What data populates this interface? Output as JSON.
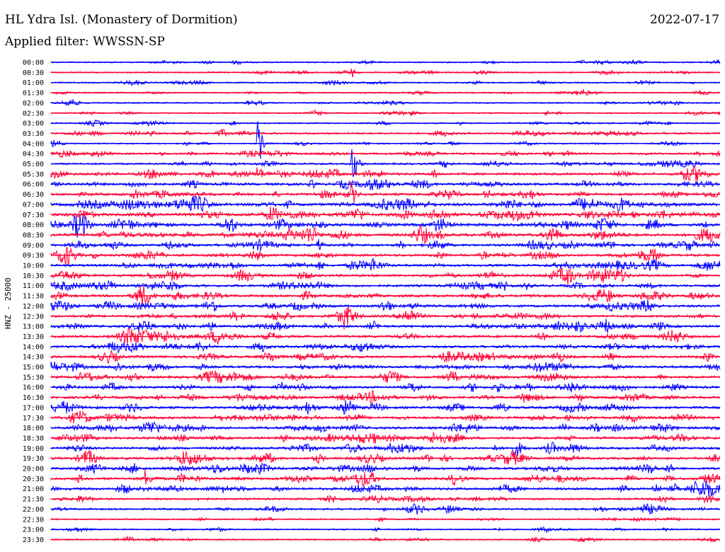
{
  "header": {
    "title": "HL Ydra Isl. (Monastery of Dormition)",
    "date": "2022-07-17",
    "filter": "Applied filter: WWSSN-SP"
  },
  "colors": {
    "odd": "#0000ff",
    "even": "#ff0033"
  },
  "chart_data": {
    "type": "line",
    "title": "HL Ydra Isl. (Monastery of Dormition)",
    "ylabel": "HNZ - 25000",
    "trace_labels": [
      "00:00",
      "00:30",
      "01:00",
      "01:30",
      "02:00",
      "02:30",
      "03:00",
      "03:30",
      "04:00",
      "04:30",
      "05:00",
      "05:30",
      "06:00",
      "06:30",
      "07:00",
      "07:30",
      "08:00",
      "08:30",
      "09:00",
      "09:30",
      "10:00",
      "10:30",
      "11:00",
      "11:30",
      "12:00",
      "12:30",
      "13:00",
      "13:30",
      "14:00",
      "14:30",
      "15:00",
      "15:30",
      "16:00",
      "16:30",
      "17:00",
      "17:30",
      "18:00",
      "18:30",
      "19:00",
      "19:30",
      "20:00",
      "20:30",
      "21:00",
      "21:30",
      "22:00",
      "22:30",
      "23:00",
      "23:30"
    ],
    "noise_level": [
      1,
      1,
      1,
      1,
      1,
      1,
      1,
      2,
      1,
      2,
      2,
      3,
      3,
      3,
      4,
      4,
      4,
      4,
      3,
      3,
      3,
      3,
      3,
      3,
      3,
      3,
      3,
      3,
      3,
      3,
      3,
      3,
      3,
      3,
      3,
      3,
      3,
      3,
      3,
      3,
      3,
      3,
      3,
      2,
      2,
      1,
      1,
      1
    ],
    "events": [
      {
        "trace": "04:00",
        "x_frac": 0.31,
        "amp": 45
      },
      {
        "trace": "05:30",
        "x_frac": 0.31,
        "amp": 16
      },
      {
        "trace": "05:00",
        "x_frac": 0.45,
        "amp": 35
      },
      {
        "trace": "06:30",
        "x_frac": 0.45,
        "amp": 14
      },
      {
        "trace": "00:30",
        "x_frac": 0.45,
        "amp": 6
      },
      {
        "trace": "12:30",
        "x_frac": 0.44,
        "amp": 18
      },
      {
        "trace": "17:30",
        "x_frac": 0.87,
        "amp": 9
      },
      {
        "trace": "20:30",
        "x_frac": 0.14,
        "amp": 14
      },
      {
        "trace": "21:00",
        "x_frac": 0.98,
        "amp": 8
      },
      {
        "trace": "09:00",
        "x_frac": 0.4,
        "amp": 8
      },
      {
        "trace": "10:00",
        "x_frac": 0.48,
        "amp": 8
      }
    ]
  }
}
